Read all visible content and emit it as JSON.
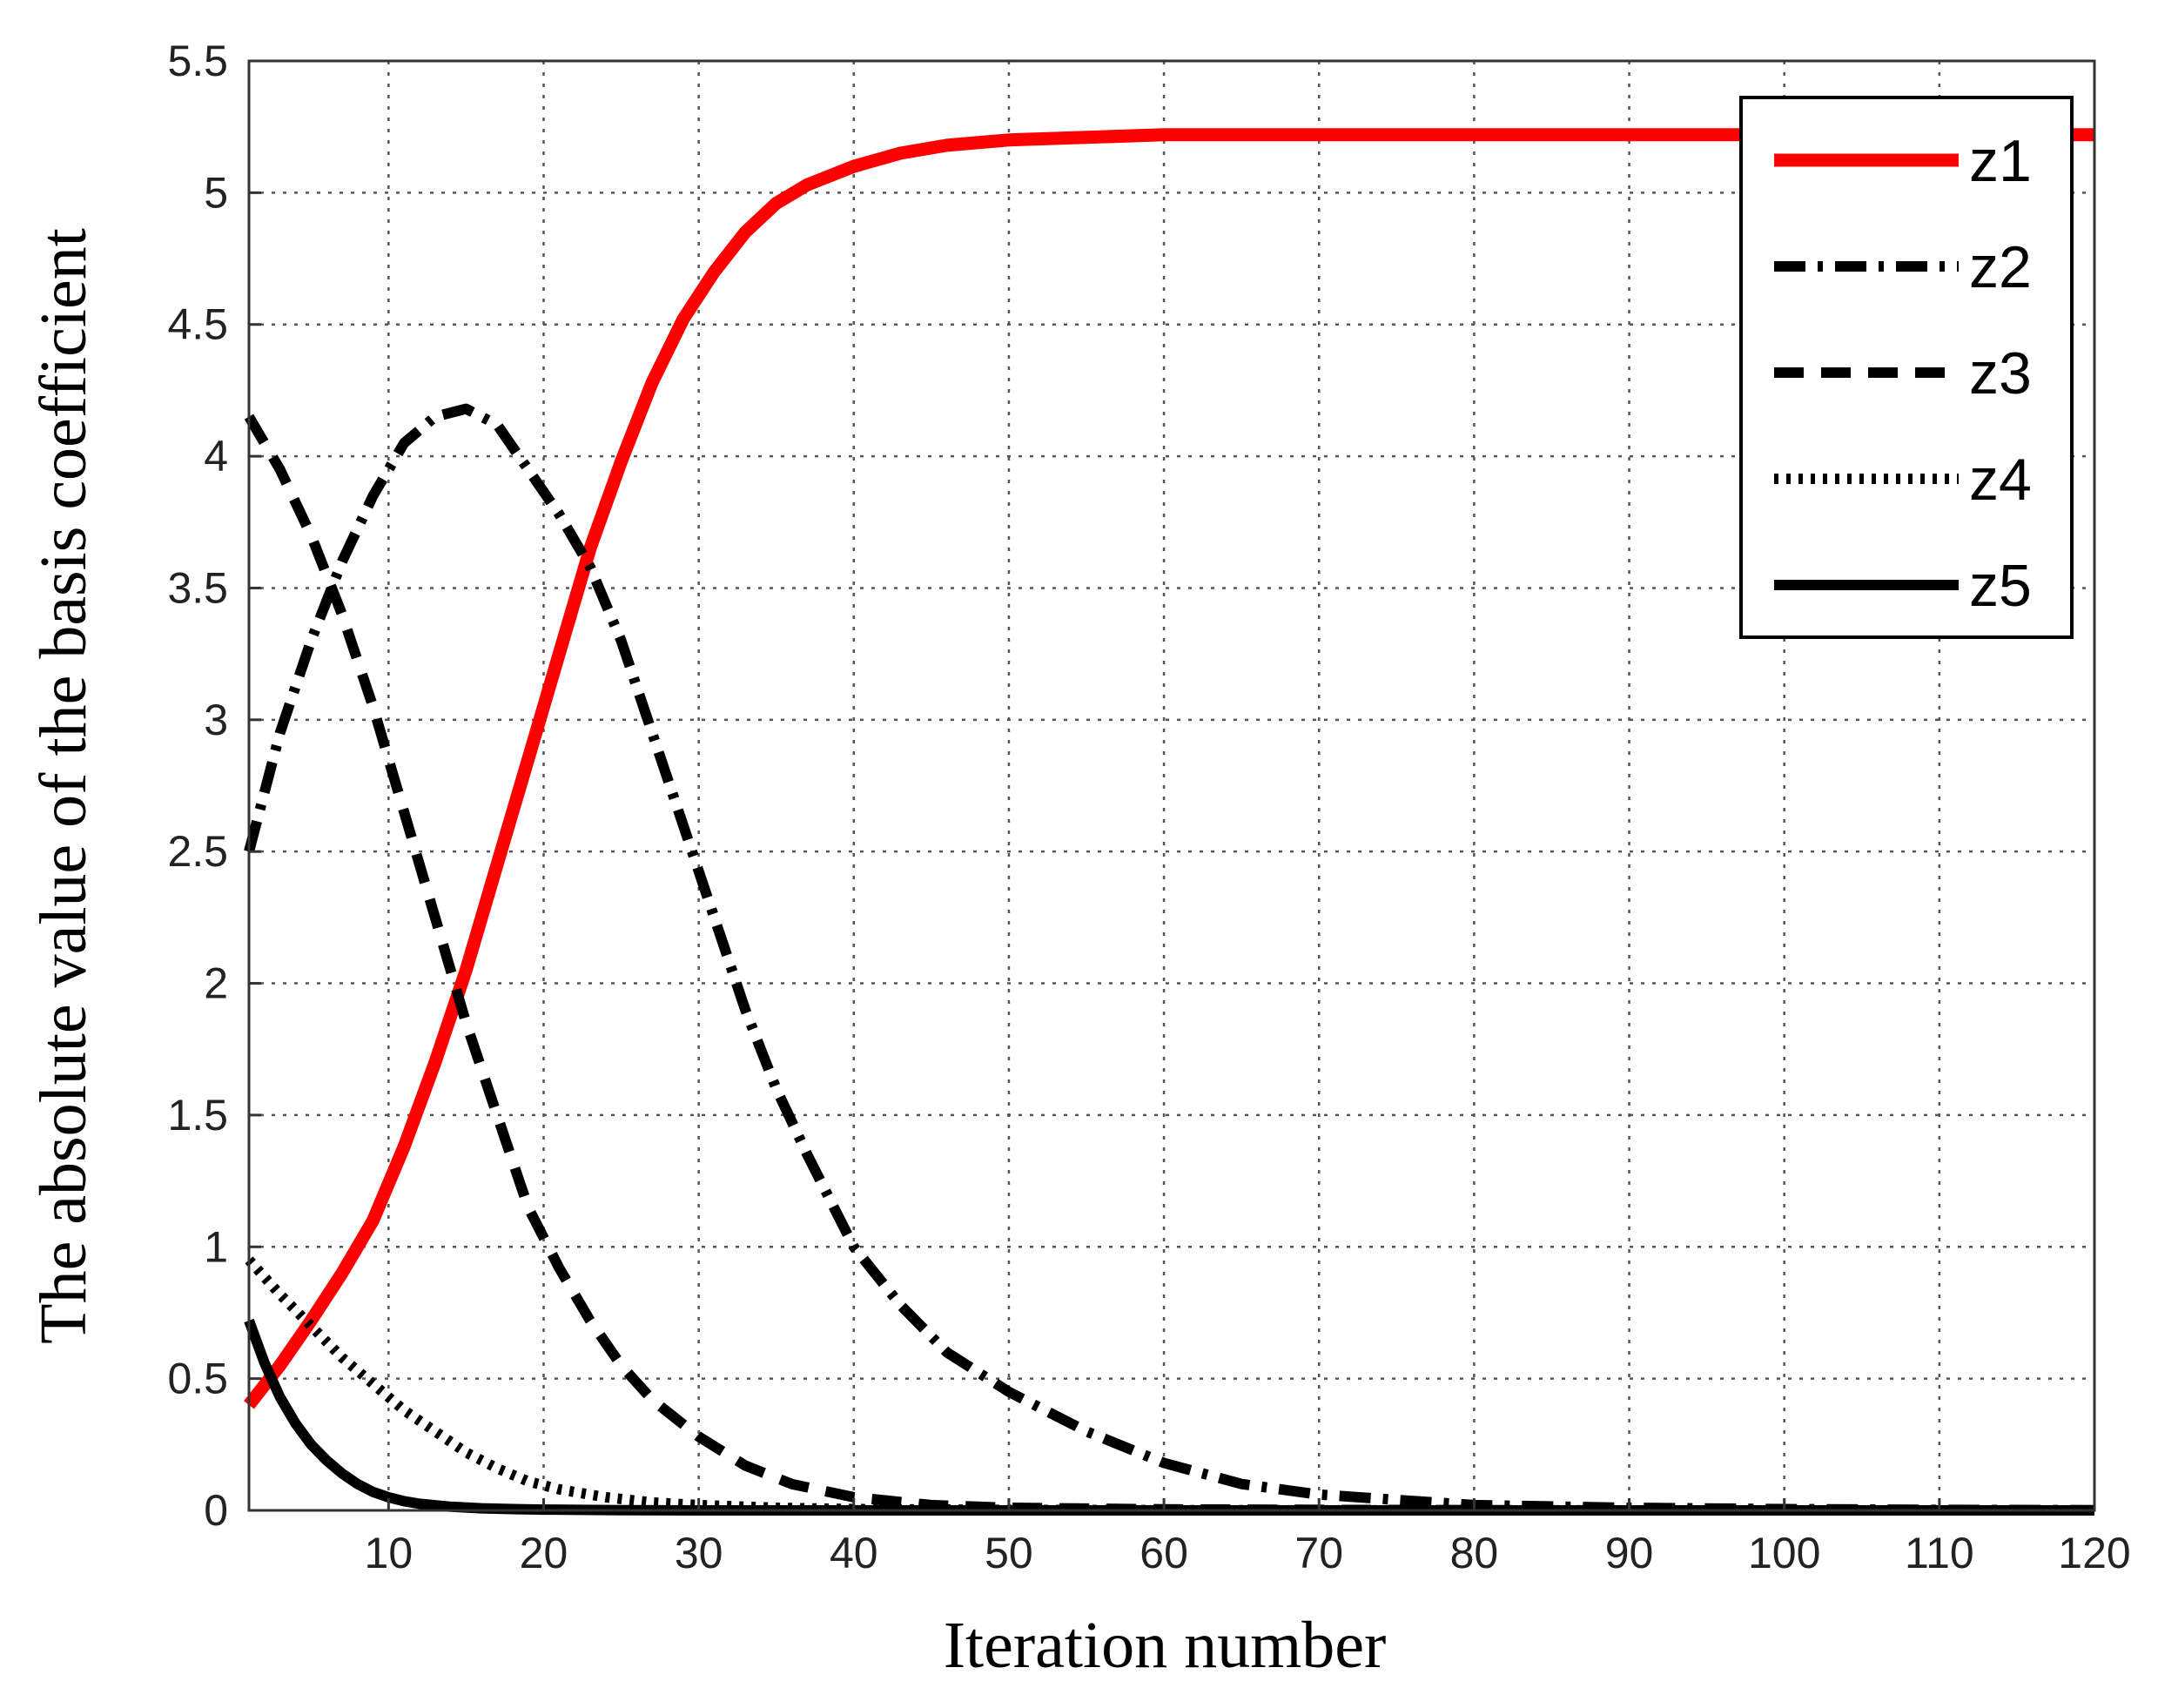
{
  "chart_data": {
    "type": "line",
    "title": "",
    "xlabel": "Iteration number",
    "ylabel": "The absolute value of the basis coefficient",
    "xlim": [
      1,
      120
    ],
    "ylim": [
      0,
      5.5
    ],
    "xticks": [
      10,
      20,
      30,
      40,
      50,
      60,
      70,
      80,
      90,
      100,
      110,
      120
    ],
    "xtick_labels": [
      "10",
      "20",
      "30",
      "40",
      "50",
      "60",
      "70",
      "80",
      "90",
      "100",
      "110",
      "120"
    ],
    "yticks": [
      0,
      0.5,
      1,
      1.5,
      2,
      2.5,
      3,
      3.5,
      4,
      4.5,
      5,
      5.5
    ],
    "ytick_labels": [
      "0",
      "0.5",
      "1",
      "1.5",
      "2",
      "2.5",
      "3",
      "3.5",
      "4",
      "4.5",
      "5",
      "5.5"
    ],
    "grid": true,
    "grid_style": "dotted",
    "legend_position": "top-right",
    "series": [
      {
        "name": "z1",
        "color": "#ff0000",
        "style": "solid",
        "x": [
          1,
          3,
          5,
          7,
          9,
          11,
          13,
          15,
          17,
          19,
          21,
          23,
          25,
          27,
          29,
          31,
          33,
          35,
          37,
          40,
          43,
          46,
          50,
          55,
          60,
          70,
          80,
          90,
          100,
          110,
          120
        ],
        "y": [
          0.4,
          0.55,
          0.72,
          0.9,
          1.1,
          1.38,
          1.7,
          2.05,
          2.45,
          2.85,
          3.25,
          3.65,
          3.98,
          4.28,
          4.52,
          4.7,
          4.85,
          4.96,
          5.03,
          5.1,
          5.15,
          5.18,
          5.2,
          5.21,
          5.22,
          5.22,
          5.22,
          5.22,
          5.22,
          5.22,
          5.22
        ]
      },
      {
        "name": "z2",
        "color": "#000000",
        "style": "dashdot",
        "x": [
          1,
          3,
          5,
          7,
          9,
          11,
          13,
          15,
          17,
          19,
          21,
          23,
          25,
          27,
          29,
          31,
          33,
          35,
          37,
          40,
          43,
          46,
          50,
          55,
          60,
          65,
          70,
          75,
          80,
          90,
          100,
          110,
          120
        ],
        "y": [
          2.5,
          2.95,
          3.3,
          3.6,
          3.85,
          4.05,
          4.15,
          4.18,
          4.12,
          3.95,
          3.78,
          3.58,
          3.3,
          2.95,
          2.6,
          2.25,
          1.9,
          1.6,
          1.35,
          1.0,
          0.78,
          0.6,
          0.45,
          0.3,
          0.18,
          0.1,
          0.06,
          0.04,
          0.02,
          0.01,
          0.005,
          0.002,
          0.001
        ]
      },
      {
        "name": "z3",
        "color": "#000000",
        "style": "dashed",
        "x": [
          1,
          3,
          5,
          7,
          9,
          11,
          13,
          15,
          17,
          19,
          21,
          23,
          25,
          27,
          30,
          33,
          36,
          40,
          45,
          50,
          60,
          70,
          80,
          90,
          100,
          110,
          120
        ],
        "y": [
          4.15,
          3.95,
          3.7,
          3.4,
          3.05,
          2.65,
          2.25,
          1.85,
          1.5,
          1.15,
          0.92,
          0.72,
          0.55,
          0.42,
          0.28,
          0.17,
          0.1,
          0.05,
          0.02,
          0.01,
          0.004,
          0.002,
          0.001,
          0.0,
          0.0,
          0.0,
          0.0
        ]
      },
      {
        "name": "z4",
        "color": "#000000",
        "style": "dotted",
        "x": [
          1,
          3,
          5,
          7,
          9,
          11,
          13,
          15,
          17,
          19,
          21,
          24,
          27,
          30,
          35,
          40,
          50,
          60,
          80,
          100,
          120
        ],
        "y": [
          0.95,
          0.82,
          0.7,
          0.58,
          0.48,
          0.38,
          0.3,
          0.22,
          0.16,
          0.11,
          0.08,
          0.05,
          0.03,
          0.02,
          0.01,
          0.005,
          0.002,
          0.001,
          0.0,
          0.0,
          0.0
        ]
      },
      {
        "name": "z5",
        "color": "#000000",
        "style": "solid",
        "x": [
          1,
          2,
          3,
          4,
          5,
          6,
          7,
          8,
          9,
          10,
          11,
          12,
          14,
          16,
          18,
          20,
          25,
          30,
          40,
          60,
          80,
          100,
          120
        ],
        "y": [
          0.72,
          0.56,
          0.43,
          0.33,
          0.25,
          0.19,
          0.14,
          0.1,
          0.07,
          0.05,
          0.035,
          0.025,
          0.014,
          0.008,
          0.005,
          0.003,
          0.001,
          0.0,
          0.0,
          0.0,
          0.0,
          0.0,
          0.0
        ]
      }
    ]
  }
}
